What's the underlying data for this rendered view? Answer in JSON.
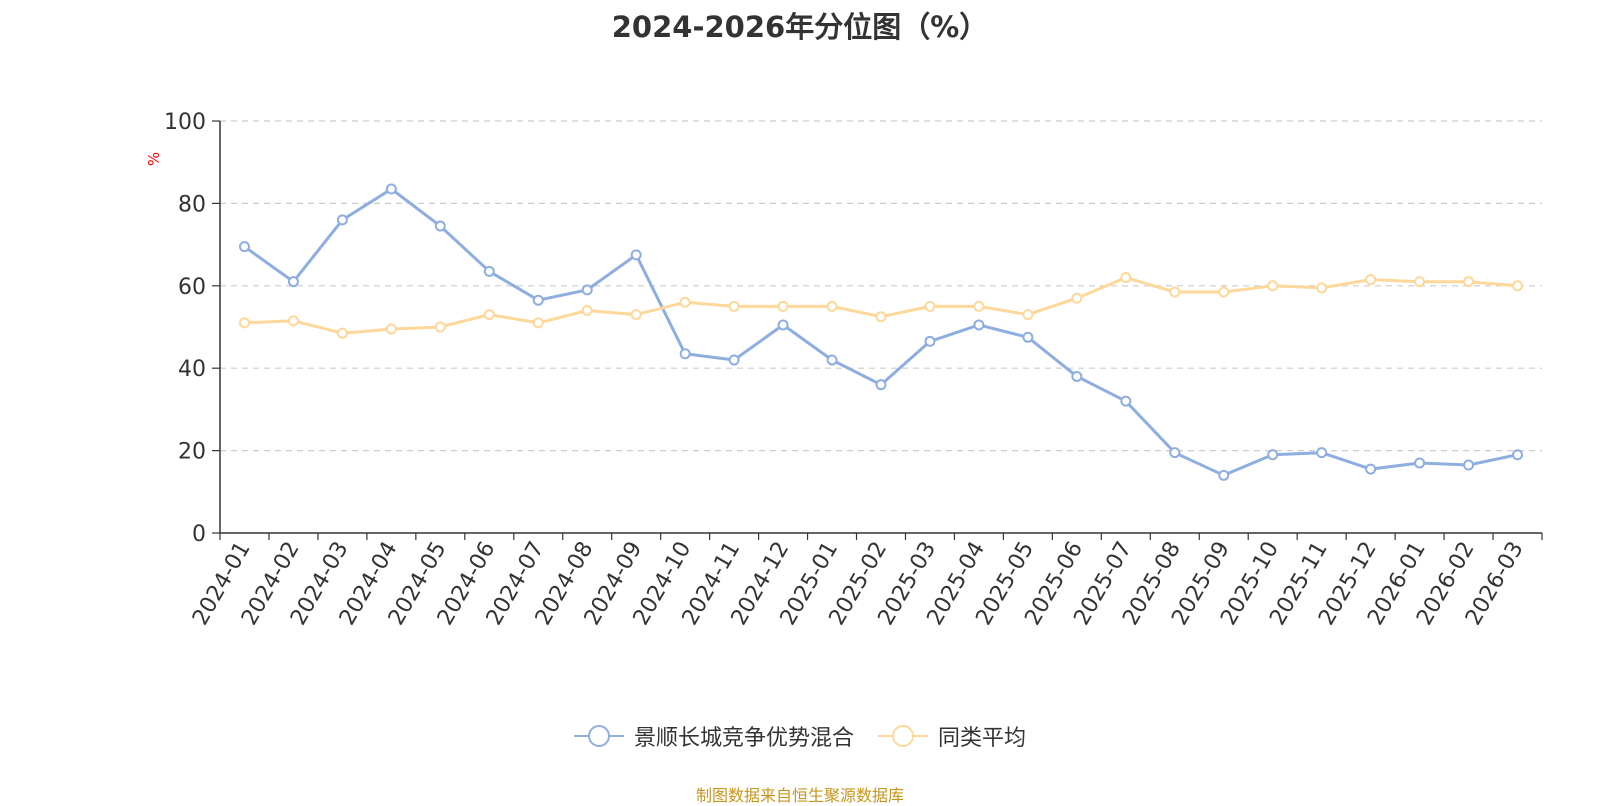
{
  "chart_data": {
    "type": "line",
    "title": "2024-2026年分位图（%）",
    "ylabel": "%",
    "ylim": [
      0,
      100
    ],
    "yticks": [
      0,
      20,
      40,
      60,
      80,
      100
    ],
    "grid": true,
    "legend_position": "bottom",
    "categories": [
      "2024-01",
      "2024-02",
      "2024-03",
      "2024-04",
      "2024-05",
      "2024-06",
      "2024-07",
      "2024-08",
      "2024-09",
      "2024-10",
      "2024-11",
      "2024-12",
      "2025-01",
      "2025-02",
      "2025-03",
      "2025-04",
      "2025-05",
      "2025-06",
      "2025-07",
      "2025-08",
      "2025-09",
      "2025-10",
      "2025-11",
      "2025-12",
      "2026-01",
      "2026-02",
      "2026-03"
    ],
    "series": [
      {
        "name": "景顺长城竞争优势混合",
        "color": "#8eaee0",
        "values": [
          69.5,
          61,
          76,
          83.5,
          74.5,
          63.5,
          56.5,
          59,
          67.5,
          43.5,
          42,
          50.5,
          42,
          36,
          46.5,
          50.5,
          47.5,
          38,
          32,
          19.5,
          14,
          19,
          19.5,
          15.5,
          17,
          16.5,
          19
        ]
      },
      {
        "name": "同类平均",
        "color": "#fdd89a",
        "values": [
          51,
          51.5,
          48.5,
          49.5,
          50,
          53,
          51,
          54,
          53,
          56,
          55,
          55,
          55,
          52.5,
          55,
          55,
          53,
          57,
          62,
          58.5,
          58.5,
          60,
          59.5,
          61.5,
          61,
          61,
          60
        ]
      }
    ]
  },
  "source": "制图数据来自恒生聚源数据库"
}
